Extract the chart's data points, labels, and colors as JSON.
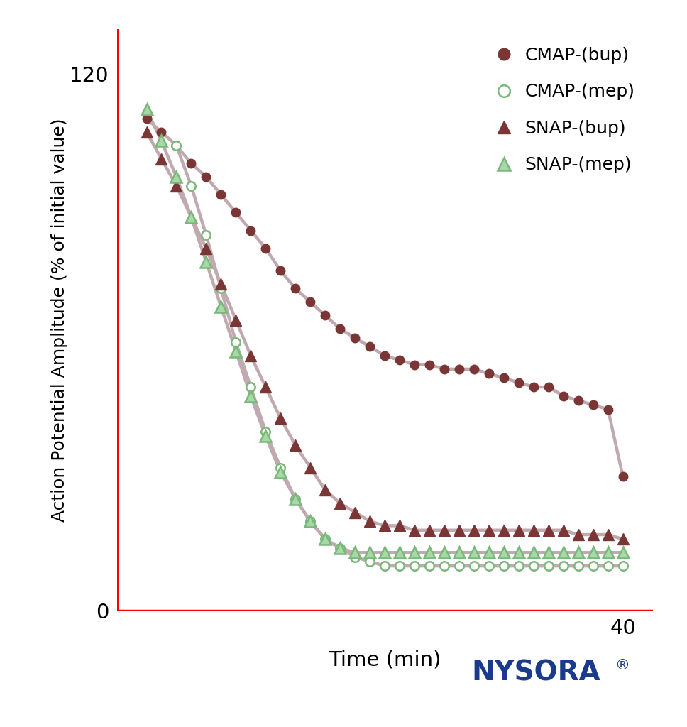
{
  "ylabel": "Action Potential Amplitude (% of initial value)",
  "xlabel": "Time (min)",
  "ylim": [
    0,
    130
  ],
  "xlim": [
    6,
    42
  ],
  "yticks": [
    0,
    120
  ],
  "xticks": [
    40
  ],
  "bg_color": "#ffffff",
  "axis_color": "#ff0000",
  "line_color": "#c0aab0",
  "cmap_bup_color": "#7a3535",
  "cmap_mep_fill": "#a8d8a8",
  "cmap_mep_edge": "#7ab87a",
  "snap_bup_color": "#7a3535",
  "snap_mep_fill": "#a8d8a8",
  "snap_mep_edge": "#7ab87a",
  "cmap_bup": {
    "x": [
      8,
      9,
      10,
      11,
      12,
      13,
      14,
      15,
      16,
      17,
      18,
      19,
      20,
      21,
      22,
      23,
      24,
      25,
      26,
      27,
      28,
      29,
      30,
      31,
      32,
      33,
      34,
      35,
      36,
      37,
      38,
      39,
      40
    ],
    "y": [
      110,
      107,
      104,
      100,
      97,
      93,
      89,
      85,
      81,
      76,
      72,
      69,
      66,
      63,
      61,
      59,
      57,
      56,
      55,
      55,
      54,
      54,
      54,
      53,
      52,
      51,
      50,
      50,
      48,
      47,
      46,
      45,
      30
    ]
  },
  "cmap_mep": {
    "x": [
      10,
      11,
      12,
      13,
      14,
      15,
      16,
      17,
      18,
      19,
      20,
      21,
      22,
      23,
      24,
      25,
      26,
      27,
      28,
      29,
      30,
      31,
      32,
      33,
      34,
      35,
      36,
      37,
      38,
      39,
      40
    ],
    "y": [
      104,
      95,
      84,
      72,
      60,
      50,
      40,
      32,
      25,
      20,
      16,
      14,
      12,
      11,
      10,
      10,
      10,
      10,
      10,
      10,
      10,
      10,
      10,
      10,
      10,
      10,
      10,
      10,
      10,
      10,
      10
    ]
  },
  "snap_bup": {
    "x": [
      8,
      9,
      10,
      11,
      12,
      13,
      14,
      15,
      16,
      17,
      18,
      19,
      20,
      21,
      22,
      23,
      24,
      25,
      26,
      27,
      28,
      29,
      30,
      31,
      32,
      33,
      34,
      35,
      36,
      37,
      38,
      39,
      40
    ],
    "y": [
      107,
      101,
      95,
      88,
      81,
      73,
      65,
      57,
      50,
      43,
      37,
      32,
      27,
      24,
      22,
      20,
      19,
      19,
      18,
      18,
      18,
      18,
      18,
      18,
      18,
      18,
      18,
      18,
      18,
      17,
      17,
      17,
      16
    ]
  },
  "snap_mep": {
    "x": [
      8,
      9,
      10,
      11,
      12,
      13,
      14,
      15,
      16,
      17,
      18,
      19,
      20,
      21,
      22,
      23,
      24,
      25,
      26,
      27,
      28,
      29,
      30,
      31,
      32,
      33,
      34,
      35,
      36,
      37,
      38,
      39,
      40
    ],
    "y": [
      112,
      105,
      97,
      88,
      78,
      68,
      58,
      48,
      39,
      31,
      25,
      20,
      16,
      14,
      13,
      13,
      13,
      13,
      13,
      13,
      13,
      13,
      13,
      13,
      13,
      13,
      13,
      13,
      13,
      13,
      13,
      13,
      13
    ]
  },
  "nysora_color": "#1a3a8c",
  "nysora_fontsize": 28
}
